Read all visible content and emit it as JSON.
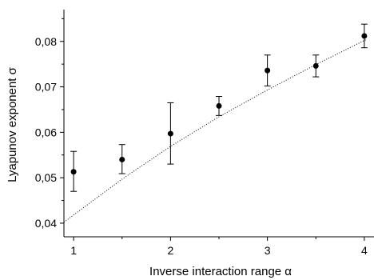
{
  "chart_data": {
    "type": "scatter",
    "xlabel": "Inverse interaction range α",
    "ylabel": "Lyapunov exponent σ",
    "xlim": [
      0.9,
      4.1
    ],
    "ylim": [
      0.037,
      0.087
    ],
    "grid": false,
    "x_ticks": [
      1,
      2,
      3,
      4
    ],
    "x_tick_labels": [
      "1",
      "2",
      "3",
      "4"
    ],
    "y_ticks": [
      0.04,
      0.05,
      0.06,
      0.07,
      0.08
    ],
    "y_tick_labels": [
      "0,04",
      "0,05",
      "0,06",
      "0,07",
      "0,08"
    ],
    "series": [
      {
        "type": "scatter-errorbar",
        "x": [
          1.0,
          1.5,
          2.0,
          2.5,
          3.0,
          3.5,
          4.0
        ],
        "y": [
          0.0513,
          0.054,
          0.0597,
          0.0658,
          0.0736,
          0.0746,
          0.0812
        ],
        "yerr_low": [
          0.047,
          0.0509,
          0.053,
          0.0637,
          0.0702,
          0.0722,
          0.0786
        ],
        "yerr_high": [
          0.0558,
          0.0573,
          0.0665,
          0.0679,
          0.077,
          0.077,
          0.0838
        ],
        "marker_color": "#000000"
      },
      {
        "type": "line",
        "style": "dotted",
        "color": "#000000",
        "x": [
          0.9,
          1.0,
          1.5,
          2.0,
          2.5,
          3.0,
          3.5,
          4.0,
          4.02
        ],
        "y": [
          0.0402,
          0.0418,
          0.0497,
          0.0569,
          0.0634,
          0.0693,
          0.0749,
          0.0802,
          0.0804
        ]
      }
    ]
  }
}
